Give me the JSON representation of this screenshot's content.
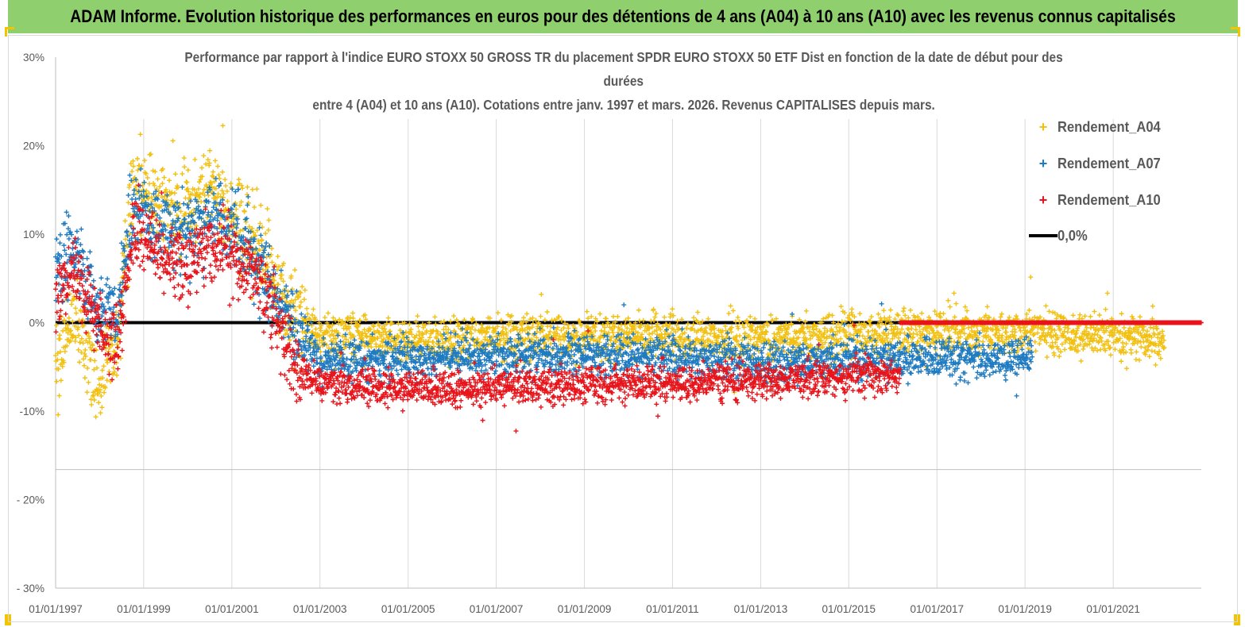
{
  "banner": {
    "title": "ADAM Informe. Evolution historique des performances en euros pour des détentions de 4 ans (A04) à 10 ans (A10) avec les revenus connus capitalisés"
  },
  "colors": {
    "banner": "#8fcf6e",
    "a04": "#f2c010",
    "a07": "#1f7bc1",
    "a10": "#e8141b",
    "zero": "#000000"
  },
  "chart_data": {
    "type": "scatter",
    "title_lines": [
      "Performance par rapport à l'indice EURO STOXX 50 GROSS TR  du placement SPDR EURO STOXX 50 ETF Dist en fonction de la date de début pour des",
      "durées",
      "entre 4 (A04) et 10 ans (A10).  Cotations entre janv. 1997 et mars. 2026. Revenus CAPITALISES depuis mars."
    ],
    "xlabel": "",
    "ylabel": "",
    "x_range": [
      "1997-01-01",
      "2023-01-01"
    ],
    "x_ticks": [
      "01/01/1997",
      "01/01/1999",
      "01/01/2001",
      "01/01/2003",
      "01/01/2005",
      "01/01/2007",
      "01/01/2009",
      "01/01/2011",
      "01/01/2013",
      "01/01/2015",
      "01/01/2017",
      "01/01/2019",
      "01/01/2021"
    ],
    "ylim": [
      -0.3,
      0.3
    ],
    "y_ticks": [
      0.3,
      0.2,
      0.1,
      0.0,
      -0.1,
      -0.2,
      -0.3
    ],
    "y_tick_labels": [
      "30%",
      "20%",
      "10%",
      "0%",
      "-10%",
      "- 20%",
      "- 30%"
    ],
    "grid": "vertical",
    "legend_position": "right",
    "series": [
      {
        "name": "Rendement_A04",
        "marker": "+",
        "end_date": "2022-03-01",
        "profile": [
          [
            "1997-01-01",
            -0.06
          ],
          [
            "1997-06-01",
            0.02
          ],
          [
            "1997-12-01",
            -0.08
          ],
          [
            "1998-06-01",
            -0.02
          ],
          [
            "1998-10-01",
            0.16
          ],
          [
            "1999-06-01",
            0.13
          ],
          [
            "2000-01-01",
            0.12
          ],
          [
            "2000-06-01",
            0.15
          ],
          [
            "2001-01-01",
            0.12
          ],
          [
            "2001-06-01",
            0.1
          ],
          [
            "2002-01-01",
            0.05
          ],
          [
            "2002-06-01",
            0.01
          ],
          [
            "2003-01-01",
            -0.015
          ],
          [
            "2005-01-01",
            -0.02
          ],
          [
            "2009-01-01",
            -0.015
          ],
          [
            "2013-01-01",
            -0.02
          ],
          [
            "2016-06-01",
            -0.01
          ],
          [
            "2019-01-01",
            -0.01
          ],
          [
            "2022-03-01",
            -0.02
          ]
        ],
        "noise": 0.025
      },
      {
        "name": "Rendement_A07",
        "marker": "+",
        "end_date": "2019-03-01",
        "profile": [
          [
            "1997-01-01",
            0.06
          ],
          [
            "1997-06-01",
            0.08
          ],
          [
            "1997-12-01",
            0.02
          ],
          [
            "1998-06-01",
            0.01
          ],
          [
            "1998-10-01",
            0.13
          ],
          [
            "1999-06-01",
            0.11
          ],
          [
            "2000-01-01",
            0.1
          ],
          [
            "2000-06-01",
            0.12
          ],
          [
            "2001-01-01",
            0.11
          ],
          [
            "2001-06-01",
            0.08
          ],
          [
            "2002-01-01",
            0.03
          ],
          [
            "2002-06-01",
            -0.01
          ],
          [
            "2003-01-01",
            -0.04
          ],
          [
            "2005-01-01",
            -0.04
          ],
          [
            "2009-01-01",
            -0.035
          ],
          [
            "2013-01-01",
            -0.045
          ],
          [
            "2016-06-01",
            -0.04
          ],
          [
            "2019-03-01",
            -0.04
          ]
        ],
        "noise": 0.022
      },
      {
        "name": "Rendement_A10",
        "marker": "+",
        "end_date": "2016-03-01",
        "profile": [
          [
            "1997-01-01",
            0.04
          ],
          [
            "1997-06-01",
            0.06
          ],
          [
            "1997-12-01",
            0.0
          ],
          [
            "1998-06-01",
            -0.02
          ],
          [
            "1998-10-01",
            0.1
          ],
          [
            "1999-06-01",
            0.08
          ],
          [
            "2000-01-01",
            0.06
          ],
          [
            "2000-06-01",
            0.09
          ],
          [
            "2001-01-01",
            0.08
          ],
          [
            "2001-06-01",
            0.06
          ],
          [
            "2002-01-01",
            0.01
          ],
          [
            "2002-06-01",
            -0.05
          ],
          [
            "2003-01-01",
            -0.07
          ],
          [
            "2005-01-01",
            -0.075
          ],
          [
            "2009-01-01",
            -0.07
          ],
          [
            "2013-01-01",
            -0.065
          ],
          [
            "2016-03-01",
            -0.06
          ]
        ],
        "noise": 0.02
      },
      {
        "name": "0,0%",
        "type": "line",
        "x": [
          "1997-01-01",
          "2016-03-01"
        ],
        "y": [
          0.0,
          0.0
        ]
      }
    ],
    "constant_segment": {
      "series": "Rendement_A10",
      "x_range": [
        "2016-03-01",
        "2023-01-01"
      ],
      "y": 0.0
    }
  }
}
